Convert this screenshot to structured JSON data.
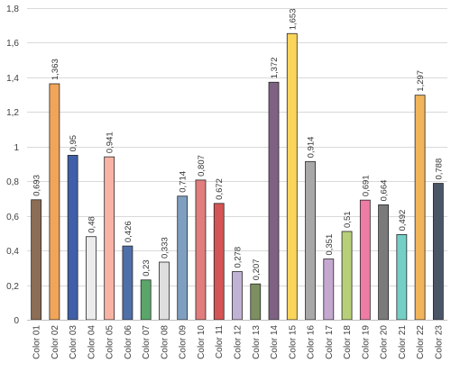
{
  "chart_data": {
    "type": "bar",
    "title": "",
    "xlabel": "",
    "ylabel": "",
    "ylim": [
      0,
      1.8
    ],
    "ytick_step": 0.2,
    "ytick_labels": [
      "0",
      "0,2",
      "0,4",
      "0,6",
      "0,8",
      "1",
      "1,2",
      "1,4",
      "1,6",
      "1,8"
    ],
    "grid": true,
    "legend": "none",
    "categories": [
      "Color 01",
      "Color 02",
      "Color 03",
      "Color 04",
      "Color 05",
      "Color 06",
      "Color 07",
      "Color 08",
      "Color 09",
      "Color 10",
      "Color 11",
      "Color 12",
      "Color 13",
      "Color 14",
      "Color 15",
      "Color 16",
      "Color 17",
      "Color 18",
      "Color 19",
      "Color 20",
      "Color 21",
      "Color 22",
      "Color 23"
    ],
    "values": [
      0.693,
      1.363,
      0.95,
      0.48,
      0.941,
      0.426,
      0.23,
      0.333,
      0.714,
      0.807,
      0.672,
      0.278,
      0.207,
      1.372,
      1.653,
      0.914,
      0.351,
      0.51,
      0.691,
      0.664,
      0.492,
      1.297,
      0.788
    ],
    "value_labels": [
      "0,693",
      "1,363",
      "0,95",
      "0,48",
      "0,941",
      "0,426",
      "0,23",
      "0,333",
      "0,714",
      "0,807",
      "0,672",
      "0,278",
      "0,207",
      "1,372",
      "1,653",
      "0,914",
      "0,351",
      "0,51",
      "0,691",
      "0,664",
      "0,492",
      "1,297",
      "0,788"
    ],
    "colors": [
      "#8c6d55",
      "#f0a55a",
      "#3f5fa8",
      "#ececec",
      "#f9b3a5",
      "#4f6fa8",
      "#5aa66a",
      "#dedede",
      "#7f9fc0",
      "#e27d7d",
      "#d45555",
      "#c0b2d4",
      "#7d8f5f",
      "#7f6283",
      "#fbd55a",
      "#a8a8a8",
      "#c4a8d0",
      "#b8cf7a",
      "#ee7ca5",
      "#7a7a7a",
      "#74cfc6",
      "#f2b45a",
      "#4a5566"
    ]
  }
}
